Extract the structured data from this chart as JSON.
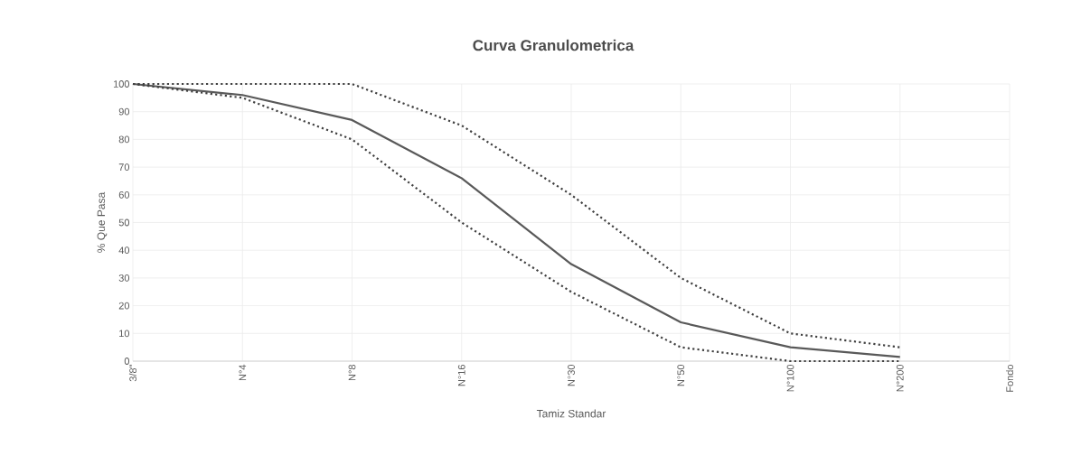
{
  "chart_data": {
    "type": "line",
    "title": "Curva Granulometrica",
    "xlabel": "Tamiz Standar",
    "ylabel": "% Que Pasa",
    "categories": [
      "3/8\"",
      "N°4",
      "N°8",
      "N°16",
      "N°30",
      "N°50",
      "N°100",
      "N°200",
      "Fondo"
    ],
    "series": [
      {
        "color": "#595959",
        "line_style": "solid",
        "values": [
          100,
          96,
          87,
          66,
          35,
          14,
          5,
          1.5,
          null
        ]
      },
      {
        "color": "#404040",
        "line_style": "dotted",
        "values": [
          100,
          100,
          100,
          85,
          60,
          30,
          10,
          5,
          null
        ]
      },
      {
        "color": "#404040",
        "line_style": "dotted",
        "values": [
          100,
          95,
          80,
          50,
          25,
          5,
          0,
          0,
          null
        ]
      }
    ],
    "ylim": [
      0,
      100
    ],
    "yticks": [
      0,
      10,
      20,
      30,
      40,
      50,
      60,
      70,
      80,
      90,
      100
    ],
    "grid": true,
    "marker": "none"
  }
}
